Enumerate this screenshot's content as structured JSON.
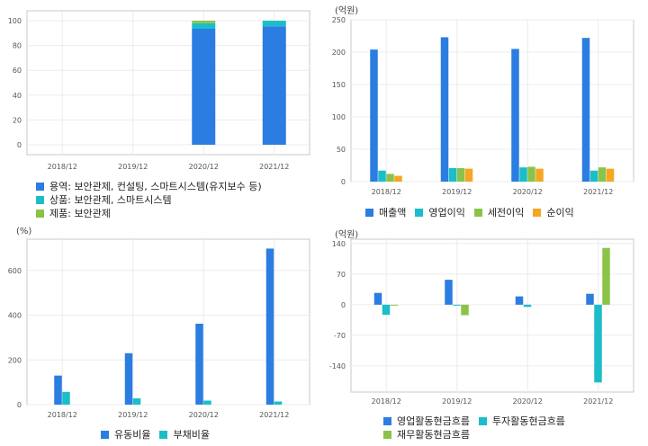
{
  "chart_data": [
    {
      "type": "bar",
      "unit": "",
      "categories": [
        "2018/12",
        "2019/12",
        "2020/12",
        "2021/12"
      ],
      "stacked": true,
      "yticks": [
        0,
        20,
        40,
        60,
        80,
        100
      ],
      "ylim": [
        -8,
        108
      ],
      "series": [
        {
          "name": "용역: 보안관제, 컨설팅, 스마트시스템(유지보수 등)",
          "color": "#2b7de1",
          "values": [
            0,
            0,
            93.5,
            95.5
          ]
        },
        {
          "name": "상품: 보안관제, 스마트시스템",
          "color": "#1bbdc9",
          "values": [
            0,
            0,
            4.5,
            4.5
          ]
        },
        {
          "name": "제품: 보안관제",
          "color": "#8bc34a",
          "values": [
            0,
            0,
            2,
            0
          ]
        }
      ]
    },
    {
      "type": "bar",
      "unit": "(억원)",
      "categories": [
        "2018/12",
        "2019/12",
        "2020/12",
        "2021/12"
      ],
      "yticks": [
        0,
        50,
        100,
        150,
        200,
        250
      ],
      "ylim": [
        0,
        250
      ],
      "series": [
        {
          "name": "매출액",
          "color": "#2b7de1",
          "values": [
            204,
            223,
            205,
            222
          ]
        },
        {
          "name": "영업이익",
          "color": "#1bbdc9",
          "values": [
            17,
            21,
            22,
            17
          ]
        },
        {
          "name": "세전이익",
          "color": "#8bc34a",
          "values": [
            12,
            21,
            23,
            22
          ]
        },
        {
          "name": "순이익",
          "color": "#f5a623",
          "values": [
            9,
            20,
            20,
            20
          ]
        }
      ]
    },
    {
      "type": "bar",
      "unit": "(%)",
      "categories": [
        "2018/12",
        "2019/12",
        "2020/12",
        "2021/12"
      ],
      "yticks": [
        0,
        200,
        400,
        600
      ],
      "ylim": [
        0,
        740
      ],
      "series": [
        {
          "name": "유동비율",
          "color": "#2b7de1",
          "values": [
            130,
            230,
            362,
            698
          ]
        },
        {
          "name": "부채비율",
          "color": "#1bbdc9",
          "values": [
            57,
            28,
            18,
            14
          ]
        }
      ]
    },
    {
      "type": "bar",
      "unit": "(억원)",
      "categories": [
        "2018/12",
        "2019/12",
        "2020/12",
        "2021/12"
      ],
      "yticks": [
        140,
        70,
        0,
        -70,
        -140
      ],
      "ylim": [
        -200,
        150
      ],
      "series": [
        {
          "name": "영업활동현금흐름",
          "color": "#2b7de1",
          "values": [
            27,
            57,
            19,
            25
          ]
        },
        {
          "name": "투자활동현금흐름",
          "color": "#1bbdc9",
          "values": [
            -23,
            -2,
            -5,
            -178
          ]
        },
        {
          "name": "재무활동현금흐름",
          "color": "#8bc34a",
          "values": [
            -2,
            -24,
            0,
            130
          ]
        }
      ]
    }
  ]
}
